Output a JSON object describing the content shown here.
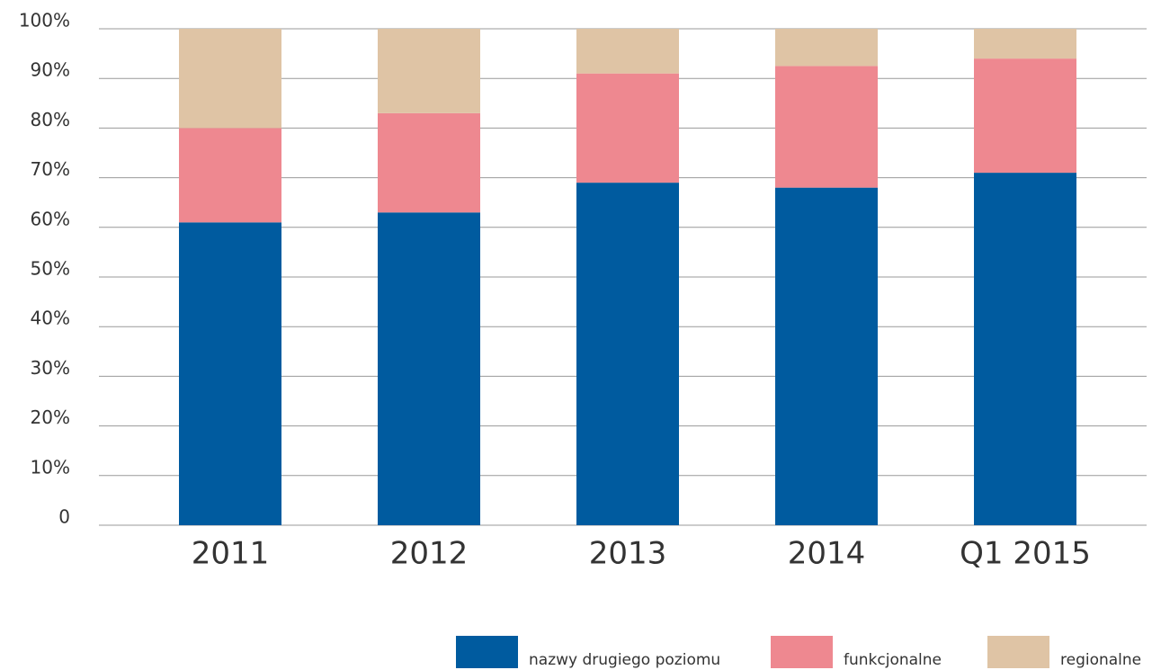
{
  "chart_data": {
    "type": "stacked_bar",
    "categories": [
      "2011",
      "2012",
      "2013",
      "2014",
      "Q1 2015"
    ],
    "series": [
      {
        "name": "nazwy drugiego poziomu",
        "color": "#005b9f",
        "values": [
          61,
          63,
          69,
          68,
          71
        ]
      },
      {
        "name": "funkcjonalne",
        "color": "#ee8890",
        "values": [
          19,
          20,
          22,
          24.5,
          23
        ]
      },
      {
        "name": "regionalne",
        "color": "#dfc4a5",
        "values": [
          20,
          17,
          9,
          7.5,
          6
        ]
      }
    ],
    "ylim": [
      0,
      100
    ],
    "yticks": [
      0,
      {
        "value": 10,
        "label": "10%"
      },
      {
        "value": 20,
        "label": "20%"
      },
      {
        "value": 30,
        "label": "30%"
      },
      {
        "value": 40,
        "label": "40%"
      },
      {
        "value": 50,
        "label": "50%"
      },
      {
        "value": 60,
        "label": "60%"
      },
      {
        "value": 70,
        "label": "70%"
      },
      {
        "value": 80,
        "label": "80%"
      },
      {
        "value": 90,
        "label": "90%"
      },
      {
        "value": 100,
        "label": "100%"
      }
    ],
    "grid": true,
    "legend": "bottom-right"
  }
}
